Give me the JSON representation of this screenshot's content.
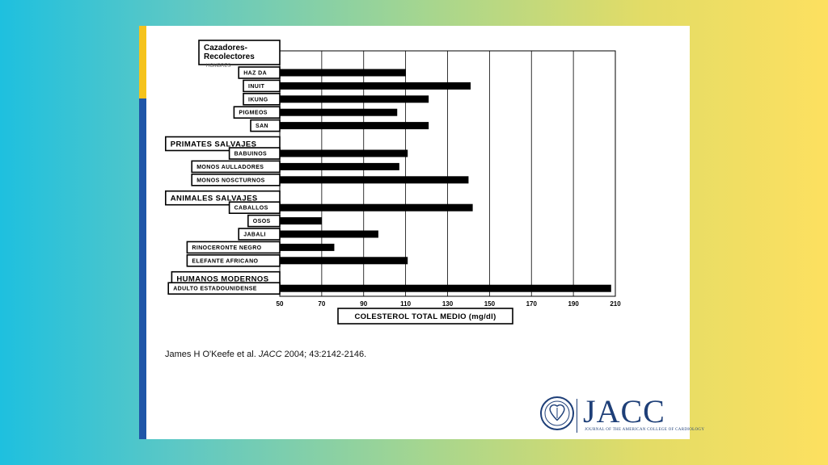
{
  "chart_data": {
    "type": "bar",
    "orientation": "horizontal",
    "xlabel": "COLESTEROL TOTAL MEDIO (mg/dl)",
    "xlim": [
      50,
      210
    ],
    "xticks": [
      "50",
      "70",
      "90",
      "110",
      "130",
      "150",
      "170",
      "190",
      "210"
    ],
    "grid": true,
    "groups": [
      {
        "header": "Cazadores-\nRecolectores",
        "header_fragment": "HOMBRES",
        "items": [
          {
            "label": "HAZ DA",
            "value": 110
          },
          {
            "label": "INUIT",
            "value": 141
          },
          {
            "label": "IKUNG",
            "value": 121
          },
          {
            "label": "PIGMEOS",
            "value": 106
          },
          {
            "label": "SAN",
            "value": 121
          }
        ]
      },
      {
        "header": "PRIMATES SALVAJES",
        "items": [
          {
            "label": "BABUINOS",
            "value": 111
          },
          {
            "label": "MONOS AULLADORES",
            "value": 107
          },
          {
            "label": "MONOS NOSCTURNOS",
            "value": 140
          }
        ]
      },
      {
        "header": "ANIMALES SALVAJES",
        "items": [
          {
            "label": "CABALLOS",
            "value": 142
          },
          {
            "label": "OSOS",
            "value": 70
          },
          {
            "label": "JABALI",
            "value": 97
          },
          {
            "label": "RINOCERONTE NEGRO",
            "value": 76
          },
          {
            "label": "ELEFANTE AFRICANO",
            "value": 111
          }
        ]
      },
      {
        "header": "HUMANOS MODERNOS",
        "items": [
          {
            "label": "ADULTO ESTADOUNIDENSE",
            "value": 208
          }
        ]
      }
    ]
  },
  "citation": {
    "authors": "James H O'Keefe et al. ",
    "journal": "JACC",
    "details": " 2004; 43:2142-2146."
  },
  "logo": {
    "wordmark": "JACC",
    "tagline": "JOURNAL OF THE AMERICAN COLLEGE OF CARDIOLOGY"
  },
  "colors": {
    "bar": "#000000",
    "accent_yellow": "#f5c31c",
    "accent_blue": "#1f56a8",
    "logo_navy": "#1e3f78"
  }
}
